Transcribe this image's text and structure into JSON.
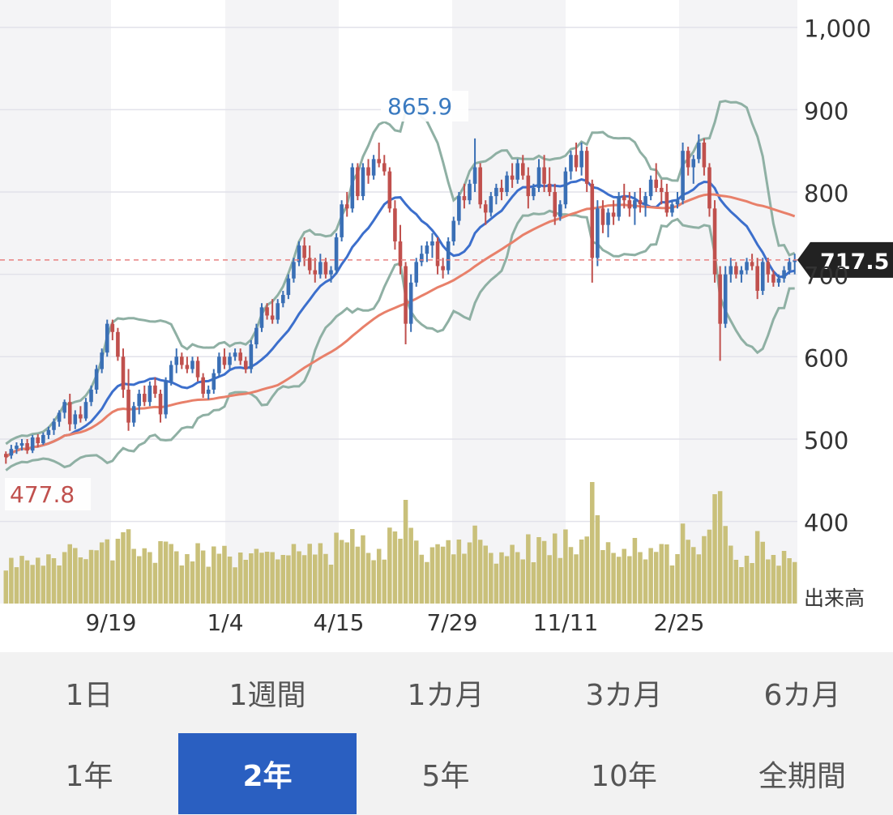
{
  "chart_data": {
    "type": "candlestick",
    "period": "2年",
    "y_axis": {
      "range": [
        380,
        1000
      ],
      "ticks": [
        400,
        500,
        600,
        700,
        800,
        900,
        "1,000"
      ],
      "position": "right"
    },
    "x_tick_labels": [
      "9/19",
      "1/4",
      "4/15",
      "7/29",
      "11/11",
      "2/25"
    ],
    "volume_label": "出来高",
    "annotations": {
      "max": "865.9",
      "min": "477.8",
      "current": "717.5"
    },
    "current_price": 717.5,
    "grid": true,
    "series": [
      {
        "type": "candlestick",
        "ohlc": [
          [
            482,
            485,
            470,
            478
          ],
          [
            480,
            493,
            476,
            488
          ],
          [
            488,
            496,
            482,
            492
          ],
          [
            492,
            500,
            486,
            495
          ],
          [
            495,
            500,
            482,
            486
          ],
          [
            486,
            505,
            483,
            502
          ],
          [
            502,
            506,
            490,
            495
          ],
          [
            495,
            508,
            493,
            505
          ],
          [
            505,
            515,
            500,
            511
          ],
          [
            511,
            525,
            505,
            521
          ],
          [
            521,
            535,
            515,
            532
          ],
          [
            532,
            548,
            525,
            545
          ],
          [
            545,
            555,
            510,
            518
          ],
          [
            518,
            535,
            512,
            530
          ],
          [
            530,
            540,
            520,
            525
          ],
          [
            525,
            550,
            522,
            545
          ],
          [
            545,
            565,
            540,
            560
          ],
          [
            560,
            590,
            555,
            585
          ],
          [
            585,
            610,
            580,
            605
          ],
          [
            605,
            645,
            600,
            640
          ],
          [
            640,
            645,
            620,
            630
          ],
          [
            630,
            635,
            595,
            600
          ],
          [
            600,
            610,
            550,
            560
          ],
          [
            560,
            585,
            510,
            520
          ],
          [
            520,
            545,
            515,
            540
          ],
          [
            540,
            560,
            530,
            555
          ],
          [
            555,
            565,
            540,
            545
          ],
          [
            545,
            570,
            540,
            565
          ],
          [
            565,
            575,
            550,
            555
          ],
          [
            555,
            560,
            520,
            530
          ],
          [
            530,
            575,
            525,
            570
          ],
          [
            570,
            595,
            565,
            590
          ],
          [
            590,
            610,
            580,
            600
          ],
          [
            600,
            605,
            585,
            590
          ],
          [
            590,
            600,
            580,
            585
          ],
          [
            585,
            600,
            580,
            595
          ],
          [
            595,
            600,
            570,
            575
          ],
          [
            575,
            580,
            550,
            555
          ],
          [
            555,
            565,
            548,
            560
          ],
          [
            560,
            585,
            555,
            580
          ],
          [
            580,
            605,
            575,
            600
          ],
          [
            600,
            610,
            585,
            590
          ],
          [
            590,
            605,
            585,
            600
          ],
          [
            600,
            610,
            595,
            605
          ],
          [
            605,
            610,
            590,
            595
          ],
          [
            595,
            600,
            580,
            585
          ],
          [
            585,
            620,
            580,
            615
          ],
          [
            615,
            640,
            610,
            635
          ],
          [
            635,
            665,
            630,
            660
          ],
          [
            660,
            665,
            645,
            650
          ],
          [
            650,
            670,
            640,
            645
          ],
          [
            645,
            670,
            640,
            665
          ],
          [
            665,
            680,
            660,
            675
          ],
          [
            675,
            700,
            670,
            695
          ],
          [
            695,
            720,
            690,
            715
          ],
          [
            715,
            740,
            710,
            735
          ],
          [
            735,
            745,
            710,
            720
          ],
          [
            720,
            735,
            700,
            705
          ],
          [
            705,
            720,
            690,
            700
          ],
          [
            700,
            725,
            695,
            715
          ],
          [
            715,
            720,
            695,
            700
          ],
          [
            700,
            710,
            690,
            705
          ],
          [
            705,
            750,
            700,
            745
          ],
          [
            745,
            790,
            740,
            785
          ],
          [
            785,
            800,
            770,
            780
          ],
          [
            780,
            835,
            775,
            830
          ],
          [
            830,
            835,
            790,
            795
          ],
          [
            795,
            835,
            790,
            830
          ],
          [
            830,
            840,
            810,
            820
          ],
          [
            820,
            845,
            815,
            840
          ],
          [
            840,
            860,
            830,
            835
          ],
          [
            835,
            845,
            820,
            825
          ],
          [
            825,
            830,
            775,
            780
          ],
          [
            780,
            790,
            730,
            740
          ],
          [
            740,
            760,
            700,
            710
          ],
          [
            710,
            715,
            615,
            640
          ],
          [
            640,
            700,
            630,
            690
          ],
          [
            690,
            720,
            685,
            715
          ],
          [
            715,
            735,
            710,
            725
          ],
          [
            725,
            740,
            715,
            735
          ],
          [
            735,
            750,
            720,
            740
          ],
          [
            740,
            745,
            700,
            710
          ],
          [
            710,
            720,
            695,
            705
          ],
          [
            705,
            745,
            700,
            740
          ],
          [
            740,
            770,
            735,
            765
          ],
          [
            765,
            800,
            760,
            795
          ],
          [
            795,
            810,
            780,
            790
          ],
          [
            790,
            815,
            785,
            810
          ],
          [
            810,
            865,
            800,
            830
          ],
          [
            830,
            835,
            780,
            785
          ],
          [
            785,
            790,
            760,
            775
          ],
          [
            775,
            800,
            770,
            795
          ],
          [
            795,
            810,
            785,
            805
          ],
          [
            805,
            815,
            790,
            800
          ],
          [
            800,
            825,
            795,
            820
          ],
          [
            820,
            835,
            805,
            815
          ],
          [
            815,
            840,
            810,
            835
          ],
          [
            835,
            845,
            815,
            820
          ],
          [
            820,
            830,
            780,
            795
          ],
          [
            795,
            810,
            790,
            805
          ],
          [
            805,
            840,
            800,
            830
          ],
          [
            830,
            845,
            800,
            810
          ],
          [
            810,
            830,
            795,
            800
          ],
          [
            800,
            810,
            760,
            770
          ],
          [
            770,
            790,
            765,
            785
          ],
          [
            785,
            830,
            780,
            825
          ],
          [
            825,
            850,
            815,
            845
          ],
          [
            845,
            860,
            825,
            830
          ],
          [
            830,
            860,
            820,
            850
          ],
          [
            850,
            855,
            800,
            810
          ],
          [
            810,
            815,
            690,
            720
          ],
          [
            720,
            790,
            710,
            780
          ],
          [
            780,
            790,
            750,
            760
          ],
          [
            760,
            780,
            745,
            775
          ],
          [
            775,
            790,
            760,
            770
          ],
          [
            770,
            800,
            765,
            795
          ],
          [
            795,
            810,
            780,
            790
          ],
          [
            790,
            800,
            770,
            780
          ],
          [
            780,
            800,
            760,
            790
          ],
          [
            790,
            805,
            775,
            785
          ],
          [
            785,
            800,
            770,
            795
          ],
          [
            795,
            820,
            790,
            815
          ],
          [
            815,
            835,
            800,
            805
          ],
          [
            805,
            815,
            785,
            800
          ],
          [
            800,
            810,
            770,
            775
          ],
          [
            775,
            790,
            770,
            785
          ],
          [
            785,
            800,
            780,
            790
          ],
          [
            790,
            860,
            785,
            850
          ],
          [
            850,
            855,
            820,
            830
          ],
          [
            830,
            845,
            810,
            840
          ],
          [
            840,
            870,
            835,
            860
          ],
          [
            860,
            865,
            820,
            830
          ],
          [
            830,
            835,
            770,
            780
          ],
          [
            780,
            790,
            690,
            700
          ],
          [
            700,
            710,
            595,
            640
          ],
          [
            640,
            710,
            635,
            700
          ],
          [
            700,
            720,
            690,
            710
          ],
          [
            710,
            715,
            695,
            700
          ],
          [
            700,
            710,
            690,
            705
          ],
          [
            705,
            720,
            700,
            715
          ],
          [
            715,
            725,
            705,
            710
          ],
          [
            710,
            720,
            670,
            680
          ],
          [
            680,
            720,
            675,
            715
          ],
          [
            715,
            720,
            690,
            700
          ],
          [
            700,
            705,
            685,
            690
          ],
          [
            690,
            700,
            685,
            695
          ],
          [
            695,
            710,
            690,
            705
          ],
          [
            705,
            720,
            700,
            715
          ],
          [
            715,
            725,
            700,
            717.5
          ]
        ]
      },
      {
        "type": "line",
        "role": "moving-average-short",
        "color": "#3c6fcc"
      },
      {
        "type": "line",
        "role": "moving-average-long",
        "color": "#e8806a"
      },
      {
        "type": "band",
        "role": "bollinger",
        "color": "#8fb0a4"
      },
      {
        "type": "bar",
        "role": "volume",
        "color": "#c9c07a"
      }
    ],
    "colors": {
      "up": "#3a6fb5",
      "down": "#c0504d",
      "volume": "#c9c07a",
      "ma_short": "#3c6fcc",
      "ma_long": "#e8806a",
      "band": "#8fb0a4",
      "current_line": "#e88080",
      "current_badge": "#222222",
      "max_label": "#3a7ac0",
      "min_label": "#c0504d"
    }
  },
  "period_buttons": {
    "row1": [
      "1日",
      "1週間",
      "1カ月",
      "3カ月",
      "6カ月"
    ],
    "row2": [
      "1年",
      "2年",
      "5年",
      "10年",
      "全期間"
    ],
    "selected": "2年",
    "active_color": "#2a5fc1"
  }
}
